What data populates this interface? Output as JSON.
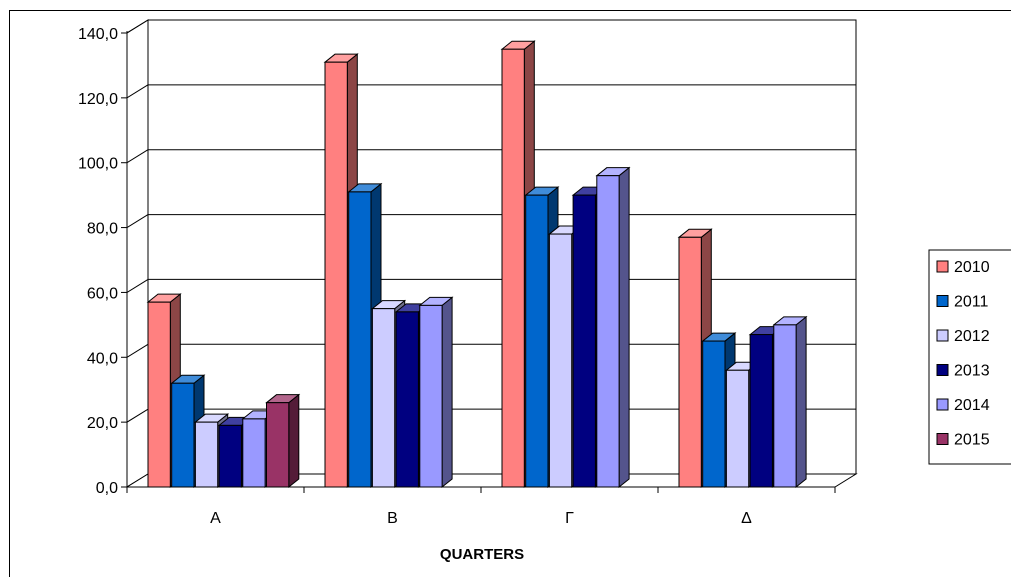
{
  "chart_data": {
    "type": "bar",
    "title": "",
    "xlabel": "QUARTERS",
    "ylabel": "",
    "categories": [
      "A",
      "B",
      "Γ",
      "Δ"
    ],
    "ylim": [
      0,
      140
    ],
    "yticks": [
      "0,0",
      "20,0",
      "40,0",
      "60,0",
      "80,0",
      "100,0",
      "120,0",
      "140,0"
    ],
    "grid": true,
    "legend_position": "right",
    "series": [
      {
        "name": "2010",
        "color": "#ff8080",
        "values": [
          57,
          131,
          135,
          77
        ]
      },
      {
        "name": "2011",
        "color": "#0066cc",
        "values": [
          32,
          91,
          90,
          45
        ]
      },
      {
        "name": "2012",
        "color": "#ccccff",
        "values": [
          20,
          55,
          78,
          36
        ]
      },
      {
        "name": "2013",
        "color": "#000080",
        "values": [
          19,
          54,
          90,
          47
        ]
      },
      {
        "name": "2014",
        "color": "#9999ff",
        "values": [
          21,
          56,
          96,
          50
        ]
      },
      {
        "name": "2015",
        "color": "#993366",
        "values": [
          26,
          null,
          null,
          null
        ]
      }
    ]
  }
}
